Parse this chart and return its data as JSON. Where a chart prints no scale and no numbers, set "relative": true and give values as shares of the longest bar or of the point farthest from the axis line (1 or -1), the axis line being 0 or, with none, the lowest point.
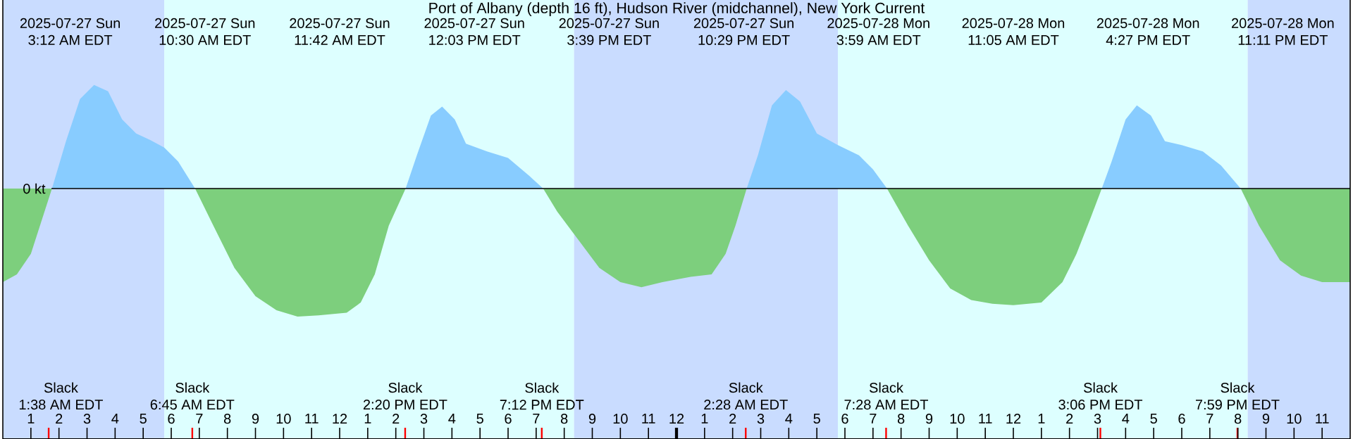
{
  "chart_data": {
    "type": "area",
    "relative": true,
    "title": "Port of Albany (depth 16 ft), Hudson River (midchannel), New York Current",
    "xlim": [
      "2025-07-27T00:00",
      "2025-07-29T00:00"
    ],
    "xticks": [
      {
        "value": "2025-07-27T01:00",
        "label": "1"
      },
      {
        "value": "2025-07-27T02:00",
        "label": "2"
      },
      {
        "value": "2025-07-27T03:00",
        "label": "3"
      },
      {
        "value": "2025-07-27T04:00",
        "label": "4"
      },
      {
        "value": "2025-07-27T05:00",
        "label": "5"
      },
      {
        "value": "2025-07-27T06:00",
        "label": "6"
      },
      {
        "value": "2025-07-27T07:00",
        "label": "7"
      },
      {
        "value": "2025-07-27T08:00",
        "label": "8"
      },
      {
        "value": "2025-07-27T09:00",
        "label": "9"
      },
      {
        "value": "2025-07-27T10:00",
        "label": "10"
      },
      {
        "value": "2025-07-27T11:00",
        "label": "11"
      },
      {
        "value": "2025-07-27T12:00",
        "label": "12"
      },
      {
        "value": "2025-07-27T13:00",
        "label": "1"
      },
      {
        "value": "2025-07-27T14:00",
        "label": "2"
      },
      {
        "value": "2025-07-27T15:00",
        "label": "3"
      },
      {
        "value": "2025-07-27T16:00",
        "label": "4"
      },
      {
        "value": "2025-07-27T17:00",
        "label": "5"
      },
      {
        "value": "2025-07-27T18:00",
        "label": "6"
      },
      {
        "value": "2025-07-27T19:00",
        "label": "7"
      },
      {
        "value": "2025-07-27T20:00",
        "label": "8"
      },
      {
        "value": "2025-07-27T21:00",
        "label": "9"
      },
      {
        "value": "2025-07-27T22:00",
        "label": "10"
      },
      {
        "value": "2025-07-27T23:00",
        "label": "11"
      },
      {
        "value": "2025-07-28T00:00",
        "label": "12"
      },
      {
        "value": "2025-07-28T01:00",
        "label": "1"
      },
      {
        "value": "2025-07-28T02:00",
        "label": "2"
      },
      {
        "value": "2025-07-28T03:00",
        "label": "3"
      },
      {
        "value": "2025-07-28T04:00",
        "label": "4"
      },
      {
        "value": "2025-07-28T05:00",
        "label": "5"
      },
      {
        "value": "2025-07-28T06:00",
        "label": "6"
      },
      {
        "value": "2025-07-28T07:00",
        "label": "7"
      },
      {
        "value": "2025-07-28T08:00",
        "label": "8"
      },
      {
        "value": "2025-07-28T09:00",
        "label": "9"
      },
      {
        "value": "2025-07-28T10:00",
        "label": "10"
      },
      {
        "value": "2025-07-28T11:00",
        "label": "11"
      },
      {
        "value": "2025-07-28T12:00",
        "label": "12"
      },
      {
        "value": "2025-07-28T13:00",
        "label": "1"
      },
      {
        "value": "2025-07-28T14:00",
        "label": "2"
      },
      {
        "value": "2025-07-28T15:00",
        "label": "3"
      },
      {
        "value": "2025-07-28T16:00",
        "label": "4"
      },
      {
        "value": "2025-07-28T17:00",
        "label": "5"
      },
      {
        "value": "2025-07-28T18:00",
        "label": "6"
      },
      {
        "value": "2025-07-28T19:00",
        "label": "7"
      },
      {
        "value": "2025-07-28T20:00",
        "label": "8"
      },
      {
        "value": "2025-07-28T21:00",
        "label": "9"
      },
      {
        "value": "2025-07-28T22:00",
        "label": "10"
      },
      {
        "value": "2025-07-28T23:00",
        "label": "11"
      }
    ],
    "tick_labels": "x",
    "bands": [
      {
        "axis": "x",
        "from": "2025-07-27T00:00",
        "to": "2025-07-27T05:45",
        "color": "#c9dcff"
      },
      {
        "axis": "x",
        "from": "2025-07-27T05:45",
        "to": "2025-07-27T20:21",
        "color": "#ddffff"
      },
      {
        "axis": "x",
        "from": "2025-07-27T20:21",
        "to": "2025-07-28T05:45",
        "color": "#c9dcff"
      },
      {
        "axis": "x",
        "from": "2025-07-28T05:45",
        "to": "2025-07-28T20:21",
        "color": "#ddffff"
      },
      {
        "axis": "x",
        "from": "2025-07-28T20:21",
        "to": "2025-07-29T00:00",
        "color": "#c9dcff"
      }
    ],
    "series": [
      {
        "color": "#7dcf7d",
        "x": [
          "2025-07-27T00:00",
          "2025-07-27T00:30",
          "2025-07-27T01:00",
          "2025-07-27T01:45"
        ],
        "values": [
          -0.73,
          -0.67,
          -0.51,
          0
        ]
      },
      {
        "color": "#88ccff",
        "x": [
          "2025-07-27T01:45",
          "2025-07-27T02:15",
          "2025-07-27T02:45",
          "2025-07-27T03:15",
          "2025-07-27T03:45",
          "2025-07-27T04:15",
          "2025-07-27T04:45",
          "2025-07-27T05:15",
          "2025-07-27T05:45",
          "2025-07-27T06:15",
          "2025-07-27T06:51"
        ],
        "values": [
          0,
          0.37,
          0.7,
          0.81,
          0.76,
          0.54,
          0.43,
          0.38,
          0.32,
          0.21,
          0
        ]
      },
      {
        "color": "#7dcf7d",
        "x": [
          "2025-07-27T06:51",
          "2025-07-27T07:30",
          "2025-07-27T08:15",
          "2025-07-27T09:00",
          "2025-07-27T09:45",
          "2025-07-27T10:30",
          "2025-07-27T11:15",
          "2025-07-27T12:15",
          "2025-07-27T12:45",
          "2025-07-27T13:15",
          "2025-07-27T13:45",
          "2025-07-27T14:21"
        ],
        "values": [
          0,
          -0.29,
          -0.62,
          -0.84,
          -0.95,
          -1.0,
          -0.99,
          -0.97,
          -0.89,
          -0.67,
          -0.29,
          0
        ]
      },
      {
        "color": "#88ccff",
        "x": [
          "2025-07-27T14:21",
          "2025-07-27T14:45",
          "2025-07-27T15:15",
          "2025-07-27T15:39",
          "2025-07-27T16:06",
          "2025-07-27T16:30",
          "2025-07-27T17:15",
          "2025-07-27T18:00",
          "2025-07-27T18:45",
          "2025-07-27T19:15"
        ],
        "values": [
          0,
          0.26,
          0.57,
          0.64,
          0.54,
          0.35,
          0.29,
          0.24,
          0.1,
          0
        ]
      },
      {
        "color": "#7dcf7d",
        "x": [
          "2025-07-27T19:15",
          "2025-07-27T19:45",
          "2025-07-27T20:30",
          "2025-07-27T21:15",
          "2025-07-27T22:00",
          "2025-07-27T22:45",
          "2025-07-27T23:30",
          "2025-07-28T00:30",
          "2025-07-28T01:15",
          "2025-07-28T01:45",
          "2025-07-28T02:06",
          "2025-07-28T02:30"
        ],
        "values": [
          0,
          -0.18,
          -0.4,
          -0.62,
          -0.73,
          -0.77,
          -0.73,
          -0.69,
          -0.67,
          -0.51,
          -0.29,
          0
        ]
      },
      {
        "color": "#88ccff",
        "x": [
          "2025-07-28T02:30",
          "2025-07-28T02:54",
          "2025-07-28T03:24",
          "2025-07-28T03:54",
          "2025-07-28T04:24",
          "2025-07-28T05:00",
          "2025-07-28T05:45",
          "2025-07-28T06:30",
          "2025-07-28T07:00",
          "2025-07-28T07:30"
        ],
        "values": [
          0,
          0.26,
          0.65,
          0.77,
          0.68,
          0.43,
          0.34,
          0.26,
          0.15,
          0
        ]
      },
      {
        "color": "#7dcf7d",
        "x": [
          "2025-07-28T07:30",
          "2025-07-28T08:15",
          "2025-07-28T09:00",
          "2025-07-28T09:45",
          "2025-07-28T10:30",
          "2025-07-28T11:15",
          "2025-07-28T12:00",
          "2025-07-28T13:00",
          "2025-07-28T13:45",
          "2025-07-28T14:15",
          "2025-07-28T14:45",
          "2025-07-28T15:09"
        ],
        "values": [
          0,
          -0.29,
          -0.56,
          -0.78,
          -0.87,
          -0.9,
          -0.91,
          -0.89,
          -0.73,
          -0.51,
          -0.23,
          0
        ]
      },
      {
        "color": "#88ccff",
        "x": [
          "2025-07-28T15:09",
          "2025-07-28T15:30",
          "2025-07-28T16:00",
          "2025-07-28T16:24",
          "2025-07-28T16:54",
          "2025-07-28T17:24",
          "2025-07-28T18:00",
          "2025-07-28T18:45",
          "2025-07-28T19:24",
          "2025-07-28T20:06"
        ],
        "values": [
          0,
          0.21,
          0.54,
          0.65,
          0.57,
          0.37,
          0.34,
          0.29,
          0.18,
          0
        ]
      },
      {
        "color": "#7dcf7d",
        "x": [
          "2025-07-28T20:06",
          "2025-07-28T20:45",
          "2025-07-28T21:30",
          "2025-07-28T22:15",
          "2025-07-28T23:00",
          "2025-07-29T00:00"
        ],
        "values": [
          0,
          -0.29,
          -0.56,
          -0.68,
          -0.73,
          -0.73
        ]
      }
    ],
    "annotations": [
      "2025-07-27 Sun 3:12 AM EDT",
      "2025-07-27 Sun 10:30 AM EDT",
      "2025-07-27 Sun 11:42 AM EDT",
      "2025-07-27 Sun 12:03 PM EDT",
      "2025-07-27 Sun 3:39 PM EDT",
      "2025-07-27 Sun 10:29 PM EDT",
      "2025-07-28 Mon 3:59 AM EDT",
      "2025-07-28 Mon 11:05 AM EDT",
      "2025-07-28 Mon 4:27 PM EDT",
      "2025-07-28 Mon 11:11 PM EDT",
      {
        "text": "0 kt",
        "y": 0
      }
    ],
    "ref_lines": [
      {
        "axis": "x",
        "value": "2025-07-27T01:38",
        "label": "Slack 1:38 AM EDT",
        "color": "#ff0000"
      },
      {
        "axis": "x",
        "value": "2025-07-27T06:45",
        "label": "Slack 6:45 AM EDT",
        "color": "#ff0000"
      },
      {
        "axis": "x",
        "value": "2025-07-27T14:20",
        "label": "Slack 2:20 PM EDT",
        "color": "#ff0000"
      },
      {
        "axis": "x",
        "value": "2025-07-27T19:12",
        "label": "Slack 7:12 PM EDT",
        "color": "#ff0000"
      },
      {
        "axis": "x",
        "value": "2025-07-28T02:28",
        "label": "Slack 2:28 AM EDT",
        "color": "#ff0000"
      },
      {
        "axis": "x",
        "value": "2025-07-28T07:28",
        "label": "Slack 7:28 AM EDT",
        "color": "#ff0000"
      },
      {
        "axis": "x",
        "value": "2025-07-28T15:06",
        "label": "Slack 3:06 PM EDT",
        "color": "#ff0000"
      },
      {
        "axis": "x",
        "value": "2025-07-28T19:59",
        "label": "Slack 7:59 PM EDT",
        "color": "#ff0000"
      }
    ]
  }
}
